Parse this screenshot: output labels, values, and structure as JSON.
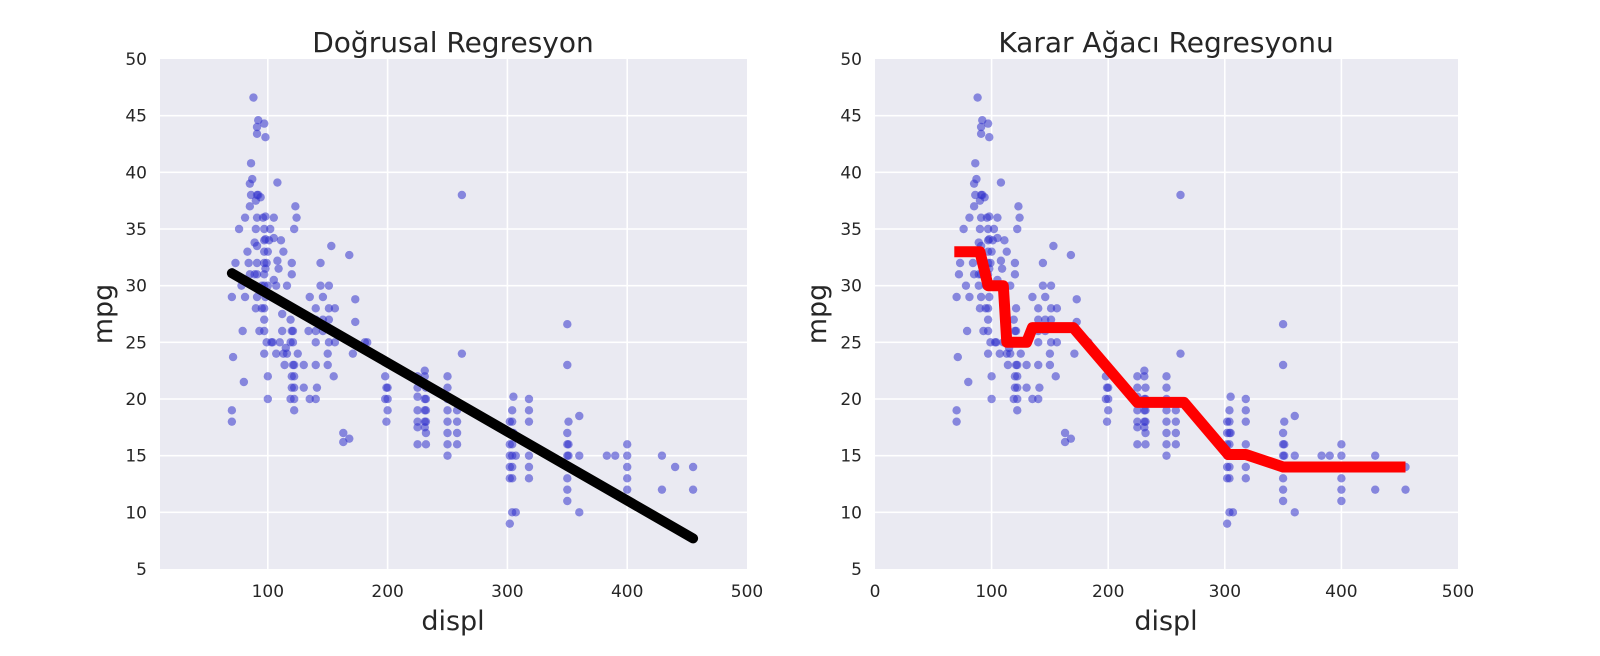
{
  "chart_data": [
    {
      "type": "scatter",
      "title": "Doğrusal Regresyon",
      "xlabel": "displ",
      "ylabel": "mpg",
      "xlim": [
        10,
        500
      ],
      "ylim": [
        5,
        50
      ],
      "xticks": [
        100,
        200,
        300,
        400,
        500
      ],
      "yticks": [
        5,
        10,
        15,
        20,
        25,
        30,
        35,
        40,
        45,
        50
      ],
      "grid": true,
      "points_color": "#3333cc",
      "fit_color": "#000000",
      "fit": {
        "type": "line",
        "x": [
          70,
          455
        ],
        "y": [
          31.1,
          7.7
        ]
      },
      "points": [
        [
          70,
          29
        ],
        [
          70,
          18
        ],
        [
          70,
          19
        ],
        [
          71,
          23.7
        ],
        [
          72,
          31
        ],
        [
          73,
          32
        ],
        [
          76,
          35
        ],
        [
          78,
          30
        ],
        [
          79,
          26
        ],
        [
          80,
          21.5
        ],
        [
          81,
          29
        ],
        [
          81,
          36
        ],
        [
          83,
          33
        ],
        [
          84,
          32
        ],
        [
          85,
          31
        ],
        [
          85,
          37
        ],
        [
          85,
          39
        ],
        [
          86,
          38
        ],
        [
          86,
          40.8
        ],
        [
          87,
          39.4
        ],
        [
          88,
          46.6
        ],
        [
          89,
          31
        ],
        [
          89,
          33.8
        ],
        [
          89,
          30
        ],
        [
          90,
          28
        ],
        [
          90,
          35
        ],
        [
          90,
          37.5
        ],
        [
          91,
          29
        ],
        [
          91,
          31
        ],
        [
          91,
          32
        ],
        [
          91,
          33.5
        ],
        [
          91,
          36
        ],
        [
          91,
          38
        ],
        [
          91,
          43.4
        ],
        [
          91,
          44
        ],
        [
          92,
          44.6
        ],
        [
          92,
          38
        ],
        [
          93,
          26
        ],
        [
          94,
          37.8
        ],
        [
          95,
          28
        ],
        [
          95,
          30
        ],
        [
          96,
          36
        ],
        [
          97,
          24
        ],
        [
          97,
          26
        ],
        [
          97,
          27
        ],
        [
          97,
          28
        ],
        [
          97,
          30
        ],
        [
          97,
          31
        ],
        [
          97,
          32
        ],
        [
          97,
          33
        ],
        [
          97,
          34
        ],
        [
          97,
          35
        ],
        [
          97,
          44.3
        ],
        [
          98,
          29
        ],
        [
          98,
          31.5
        ],
        [
          98,
          34.1
        ],
        [
          98,
          36.1
        ],
        [
          98,
          43.1
        ],
        [
          99,
          25
        ],
        [
          99,
          32
        ],
        [
          100,
          20
        ],
        [
          100,
          22
        ],
        [
          100,
          30
        ],
        [
          100,
          33
        ],
        [
          101,
          34
        ],
        [
          102,
          35
        ],
        [
          103,
          25
        ],
        [
          104,
          25
        ],
        [
          105,
          30.5
        ],
        [
          105,
          34.2
        ],
        [
          105,
          36
        ],
        [
          107,
          24
        ],
        [
          107,
          30
        ],
        [
          108,
          32.2
        ],
        [
          108,
          39.1
        ],
        [
          109,
          31.5
        ],
        [
          110,
          25
        ],
        [
          111,
          34
        ],
        [
          112,
          26
        ],
        [
          112,
          27.5
        ],
        [
          113,
          24
        ],
        [
          113,
          33
        ],
        [
          114,
          23
        ],
        [
          115,
          24.5
        ],
        [
          116,
          24
        ],
        [
          116,
          30
        ],
        [
          119,
          20
        ],
        [
          119,
          25
        ],
        [
          119,
          27
        ],
        [
          120,
          21
        ],
        [
          120,
          22
        ],
        [
          120,
          26
        ],
        [
          120,
          31
        ],
        [
          120,
          32
        ],
        [
          121,
          23
        ],
        [
          121,
          25
        ],
        [
          121,
          26
        ],
        [
          121,
          28
        ],
        [
          122,
          19
        ],
        [
          122,
          20
        ],
        [
          122,
          21
        ],
        [
          122,
          22
        ],
        [
          122,
          23
        ],
        [
          122,
          35
        ],
        [
          123,
          37
        ],
        [
          124,
          36
        ],
        [
          125,
          24
        ],
        [
          130,
          21
        ],
        [
          130,
          23
        ],
        [
          134,
          26
        ],
        [
          135,
          20
        ],
        [
          135,
          29
        ],
        [
          140,
          20
        ],
        [
          140,
          23
        ],
        [
          140,
          25
        ],
        [
          140,
          26
        ],
        [
          140,
          27
        ],
        [
          140,
          28
        ],
        [
          141,
          21
        ],
        [
          144,
          30
        ],
        [
          144,
          32
        ],
        [
          146,
          26
        ],
        [
          146,
          27
        ],
        [
          146,
          29
        ],
        [
          150,
          23
        ],
        [
          150,
          24
        ],
        [
          151,
          25
        ],
        [
          151,
          27
        ],
        [
          151,
          28
        ],
        [
          151,
          30
        ],
        [
          153,
          33.5
        ],
        [
          155,
          22
        ],
        [
          156,
          25
        ],
        [
          156,
          28
        ],
        [
          163,
          16.2
        ],
        [
          163,
          17
        ],
        [
          168,
          16.5
        ],
        [
          168,
          32.7
        ],
        [
          171,
          24
        ],
        [
          173,
          26.8
        ],
        [
          173,
          28.8
        ],
        [
          181,
          25
        ],
        [
          183,
          25
        ],
        [
          198,
          20
        ],
        [
          198,
          22
        ],
        [
          199,
          18
        ],
        [
          199,
          21
        ],
        [
          200,
          19
        ],
        [
          200,
          20
        ],
        [
          200,
          21
        ],
        [
          225,
          16
        ],
        [
          225,
          17.5
        ],
        [
          225,
          18
        ],
        [
          225,
          19
        ],
        [
          225,
          20.2
        ],
        [
          225,
          21
        ],
        [
          225,
          22
        ],
        [
          231,
          17.5
        ],
        [
          231,
          18
        ],
        [
          231,
          19
        ],
        [
          231,
          20
        ],
        [
          231,
          22
        ],
        [
          231,
          22.5
        ],
        [
          232,
          16
        ],
        [
          232,
          17
        ],
        [
          232,
          18
        ],
        [
          232,
          19
        ],
        [
          232,
          20
        ],
        [
          232,
          21
        ],
        [
          250,
          15
        ],
        [
          250,
          16
        ],
        [
          250,
          17
        ],
        [
          250,
          18
        ],
        [
          250,
          19
        ],
        [
          250,
          20
        ],
        [
          250,
          21
        ],
        [
          250,
          22
        ],
        [
          258,
          16
        ],
        [
          258,
          17
        ],
        [
          258,
          18
        ],
        [
          258,
          19
        ],
        [
          262,
          38
        ],
        [
          262,
          24
        ],
        [
          302,
          9
        ],
        [
          302,
          13
        ],
        [
          302,
          14
        ],
        [
          302,
          15
        ],
        [
          302,
          16
        ],
        [
          302,
          17
        ],
        [
          302,
          18
        ],
        [
          304,
          10
        ],
        [
          304,
          13
        ],
        [
          304,
          14
        ],
        [
          304,
          15
        ],
        [
          304,
          16
        ],
        [
          304,
          17
        ],
        [
          304,
          18
        ],
        [
          304,
          19
        ],
        [
          305,
          17
        ],
        [
          305,
          20.2
        ],
        [
          307,
          10
        ],
        [
          307,
          15
        ],
        [
          318,
          13
        ],
        [
          318,
          14
        ],
        [
          318,
          15
        ],
        [
          318,
          16
        ],
        [
          318,
          18
        ],
        [
          318,
          19
        ],
        [
          318,
          20
        ],
        [
          350,
          11
        ],
        [
          350,
          12
        ],
        [
          350,
          13
        ],
        [
          350,
          14
        ],
        [
          350,
          15
        ],
        [
          350,
          16
        ],
        [
          350,
          17
        ],
        [
          350,
          23
        ],
        [
          350,
          26.6
        ],
        [
          351,
          15
        ],
        [
          351,
          16
        ],
        [
          351,
          18
        ],
        [
          360,
          10
        ],
        [
          360,
          15
        ],
        [
          360,
          18.5
        ],
        [
          383,
          15
        ],
        [
          390,
          15
        ],
        [
          400,
          11
        ],
        [
          400,
          12
        ],
        [
          400,
          13
        ],
        [
          400,
          14
        ],
        [
          400,
          15
        ],
        [
          400,
          16
        ],
        [
          429,
          12
        ],
        [
          429,
          15
        ],
        [
          440,
          14
        ],
        [
          455,
          12
        ],
        [
          455,
          14
        ]
      ]
    },
    {
      "type": "scatter",
      "title": "Karar Ağacı Regresyonu",
      "xlabel": "displ",
      "ylabel": "mpg",
      "xlim": [
        0,
        500
      ],
      "ylim": [
        5,
        50
      ],
      "xticks": [
        0,
        100,
        200,
        300,
        400,
        500
      ],
      "yticks": [
        5,
        10,
        15,
        20,
        25,
        30,
        35,
        40,
        45,
        50
      ],
      "grid": true,
      "points_color": "#3333cc",
      "fit_color": "#ff0000",
      "fit": {
        "type": "step",
        "x": [
          68,
          90,
          97,
          110,
          113,
          130,
          135,
          170,
          225,
          265,
          303,
          318,
          350,
          455
        ],
        "y": [
          33,
          33,
          30,
          30,
          25,
          25,
          26.3,
          26.3,
          19.7,
          19.7,
          15.1,
          15.1,
          14,
          14
        ]
      },
      "points": "same-as-first"
    }
  ]
}
